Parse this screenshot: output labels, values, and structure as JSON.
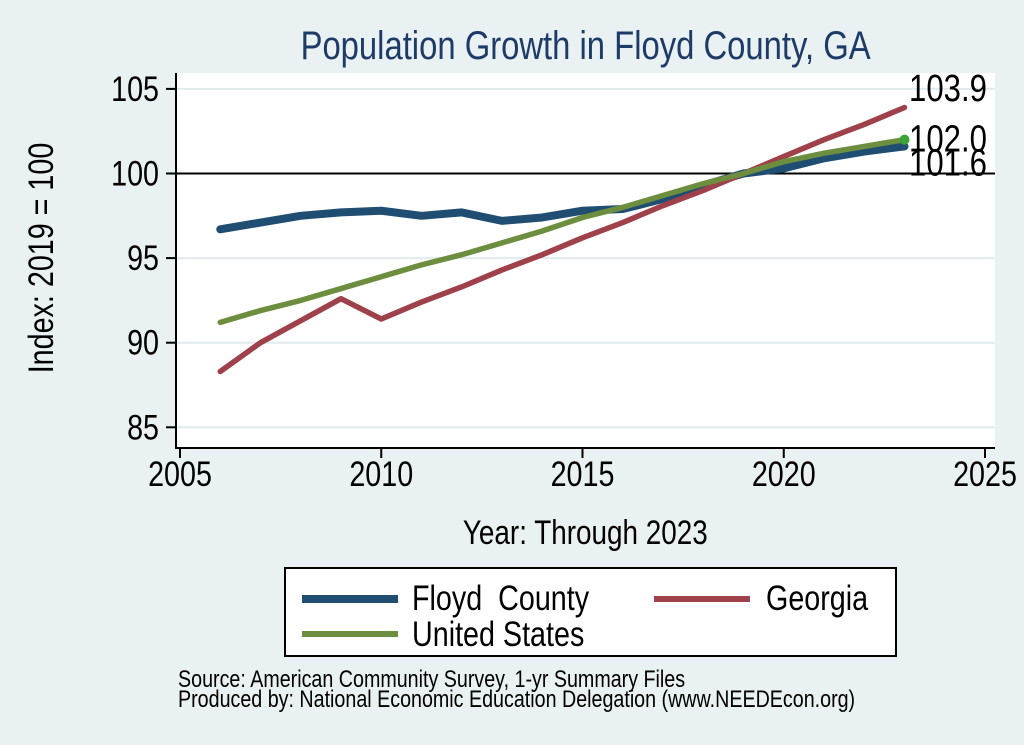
{
  "title": "Population Growth in Floyd County, GA",
  "y_axis": {
    "label": "Index: 2019 = 100",
    "ticks": [
      85,
      90,
      95,
      100,
      105
    ]
  },
  "x_axis": {
    "label": "Year: Through 2023",
    "ticks": [
      2005,
      2010,
      2015,
      2020,
      2025
    ]
  },
  "legend": {
    "items": [
      {
        "label": "Floyd  County",
        "color": "#1f4e72",
        "swatch_thickness": 8
      },
      {
        "label": "Georgia",
        "color": "#9e414b",
        "swatch_thickness": 6
      },
      {
        "label": "United States",
        "color": "#6d8e3f",
        "swatch_thickness": 6
      }
    ]
  },
  "source": {
    "line1": "Source: American Community Survey, 1-yr Summary Files",
    "line2": "Produced by: National Economic Education Delegation (www.NEEDEcon.org)"
  },
  "chart_data": {
    "type": "line",
    "x": [
      2006,
      2007,
      2008,
      2009,
      2010,
      2011,
      2012,
      2013,
      2014,
      2015,
      2016,
      2017,
      2018,
      2019,
      2020,
      2021,
      2022,
      2023
    ],
    "series": [
      {
        "name": "Floyd County",
        "color": "#1f4e72",
        "stroke_width": 8,
        "values": [
          96.7,
          97.1,
          97.5,
          97.7,
          97.8,
          97.5,
          97.7,
          97.2,
          97.4,
          97.8,
          97.9,
          98.5,
          99.3,
          100.0,
          100.3,
          100.9,
          101.3,
          101.6
        ]
      },
      {
        "name": "Georgia",
        "color": "#9e414b",
        "stroke_width": 5.5,
        "values": [
          88.3,
          90.0,
          91.3,
          92.6,
          91.4,
          92.4,
          93.3,
          94.3,
          95.2,
          96.2,
          97.1,
          98.1,
          99.0,
          100.0,
          101.0,
          102.0,
          102.9,
          103.9
        ]
      },
      {
        "name": "United States",
        "color": "#6d8e3f",
        "stroke_width": 5.5,
        "end_marker_color": "#38a438",
        "values": [
          91.2,
          91.9,
          92.5,
          93.2,
          93.9,
          94.6,
          95.2,
          95.9,
          96.6,
          97.4,
          98.0,
          98.7,
          99.4,
          100.0,
          100.7,
          101.2,
          101.6,
          102.0
        ]
      }
    ],
    "end_labels": [
      {
        "series": "Georgia",
        "text": "103.9"
      },
      {
        "series": "United States",
        "text": "102.0"
      },
      {
        "series": "Floyd County",
        "text": "101.6"
      }
    ],
    "title": "Population Growth in Floyd County, GA",
    "xlabel": "Year: Through 2023",
    "ylabel": "Index: 2019 = 100",
    "xlim": [
      2004.9,
      2025.25
    ],
    "ylim": [
      83.8,
      106
    ],
    "reference_line_y": 100,
    "gridlines": "horizontal-light",
    "legend_position": "bottom"
  }
}
